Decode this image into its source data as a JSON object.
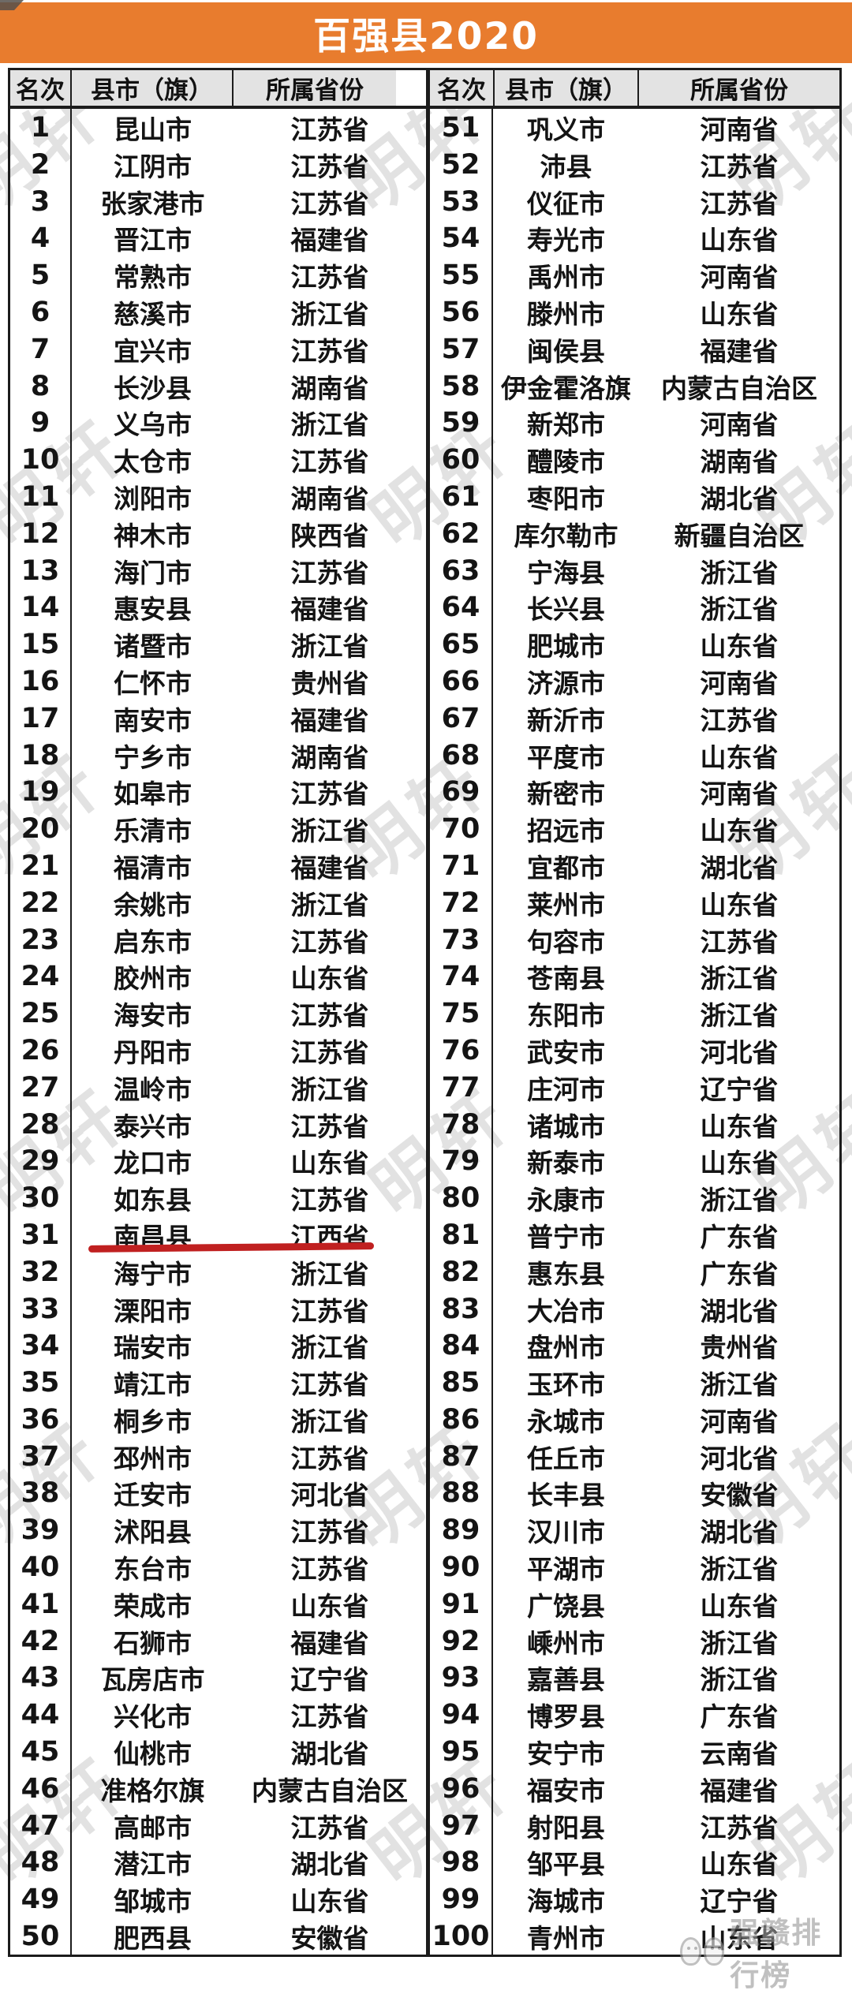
{
  "title": "百强县2020",
  "table": {
    "headers": [
      "名次",
      "县市（旗）",
      "所属省份"
    ],
    "highlight_rank": 31,
    "left_rows": [
      {
        "rank": "1",
        "city": "昆山市",
        "province": "江苏省"
      },
      {
        "rank": "2",
        "city": "江阴市",
        "province": "江苏省"
      },
      {
        "rank": "3",
        "city": "张家港市",
        "province": "江苏省"
      },
      {
        "rank": "4",
        "city": "晋江市",
        "province": "福建省"
      },
      {
        "rank": "5",
        "city": "常熟市",
        "province": "江苏省"
      },
      {
        "rank": "6",
        "city": "慈溪市",
        "province": "浙江省"
      },
      {
        "rank": "7",
        "city": "宜兴市",
        "province": "江苏省"
      },
      {
        "rank": "8",
        "city": "长沙县",
        "province": "湖南省"
      },
      {
        "rank": "9",
        "city": "义乌市",
        "province": "浙江省"
      },
      {
        "rank": "10",
        "city": "太仓市",
        "province": "江苏省"
      },
      {
        "rank": "11",
        "city": "浏阳市",
        "province": "湖南省"
      },
      {
        "rank": "12",
        "city": "神木市",
        "province": "陕西省"
      },
      {
        "rank": "13",
        "city": "海门市",
        "province": "江苏省"
      },
      {
        "rank": "14",
        "city": "惠安县",
        "province": "福建省"
      },
      {
        "rank": "15",
        "city": "诸暨市",
        "province": "浙江省"
      },
      {
        "rank": "16",
        "city": "仁怀市",
        "province": "贵州省"
      },
      {
        "rank": "17",
        "city": "南安市",
        "province": "福建省"
      },
      {
        "rank": "18",
        "city": "宁乡市",
        "province": "湖南省"
      },
      {
        "rank": "19",
        "city": "如皋市",
        "province": "江苏省"
      },
      {
        "rank": "20",
        "city": "乐清市",
        "province": "浙江省"
      },
      {
        "rank": "21",
        "city": "福清市",
        "province": "福建省"
      },
      {
        "rank": "22",
        "city": "余姚市",
        "province": "浙江省"
      },
      {
        "rank": "23",
        "city": "启东市",
        "province": "江苏省"
      },
      {
        "rank": "24",
        "city": "胶州市",
        "province": "山东省"
      },
      {
        "rank": "25",
        "city": "海安市",
        "province": "江苏省"
      },
      {
        "rank": "26",
        "city": "丹阳市",
        "province": "江苏省"
      },
      {
        "rank": "27",
        "city": "温岭市",
        "province": "浙江省"
      },
      {
        "rank": "28",
        "city": "泰兴市",
        "province": "江苏省"
      },
      {
        "rank": "29",
        "city": "龙口市",
        "province": "山东省"
      },
      {
        "rank": "30",
        "city": "如东县",
        "province": "江苏省"
      },
      {
        "rank": "31",
        "city": "南昌县",
        "province": "江西省"
      },
      {
        "rank": "32",
        "city": "海宁市",
        "province": "浙江省"
      },
      {
        "rank": "33",
        "city": "溧阳市",
        "province": "江苏省"
      },
      {
        "rank": "34",
        "city": "瑞安市",
        "province": "浙江省"
      },
      {
        "rank": "35",
        "city": "靖江市",
        "province": "江苏省"
      },
      {
        "rank": "36",
        "city": "桐乡市",
        "province": "浙江省"
      },
      {
        "rank": "37",
        "city": "邳州市",
        "province": "江苏省"
      },
      {
        "rank": "38",
        "city": "迁安市",
        "province": "河北省"
      },
      {
        "rank": "39",
        "city": "沭阳县",
        "province": "江苏省"
      },
      {
        "rank": "40",
        "city": "东台市",
        "province": "江苏省"
      },
      {
        "rank": "41",
        "city": "荣成市",
        "province": "山东省"
      },
      {
        "rank": "42",
        "city": "石狮市",
        "province": "福建省"
      },
      {
        "rank": "43",
        "city": "瓦房店市",
        "province": "辽宁省"
      },
      {
        "rank": "44",
        "city": "兴化市",
        "province": "江苏省"
      },
      {
        "rank": "45",
        "city": "仙桃市",
        "province": "湖北省"
      },
      {
        "rank": "46",
        "city": "准格尔旗",
        "province": "内蒙古自治区"
      },
      {
        "rank": "47",
        "city": "高邮市",
        "province": "江苏省"
      },
      {
        "rank": "48",
        "city": "潜江市",
        "province": "湖北省"
      },
      {
        "rank": "49",
        "city": "邹城市",
        "province": "山东省"
      },
      {
        "rank": "50",
        "city": "肥西县",
        "province": "安徽省"
      }
    ],
    "right_rows": [
      {
        "rank": "51",
        "city": "巩义市",
        "province": "河南省"
      },
      {
        "rank": "52",
        "city": "沛县",
        "province": "江苏省"
      },
      {
        "rank": "53",
        "city": "仪征市",
        "province": "江苏省"
      },
      {
        "rank": "54",
        "city": "寿光市",
        "province": "山东省"
      },
      {
        "rank": "55",
        "city": "禹州市",
        "province": "河南省"
      },
      {
        "rank": "56",
        "city": "滕州市",
        "province": "山东省"
      },
      {
        "rank": "57",
        "city": "闽侯县",
        "province": "福建省"
      },
      {
        "rank": "58",
        "city": "伊金霍洛旗",
        "province": "内蒙古自治区"
      },
      {
        "rank": "59",
        "city": "新郑市",
        "province": "河南省"
      },
      {
        "rank": "60",
        "city": "醴陵市",
        "province": "湖南省"
      },
      {
        "rank": "61",
        "city": "枣阳市",
        "province": "湖北省"
      },
      {
        "rank": "62",
        "city": "库尔勒市",
        "province": "新疆自治区"
      },
      {
        "rank": "63",
        "city": "宁海县",
        "province": "浙江省"
      },
      {
        "rank": "64",
        "city": "长兴县",
        "province": "浙江省"
      },
      {
        "rank": "65",
        "city": "肥城市",
        "province": "山东省"
      },
      {
        "rank": "66",
        "city": "济源市",
        "province": "河南省"
      },
      {
        "rank": "67",
        "city": "新沂市",
        "province": "江苏省"
      },
      {
        "rank": "68",
        "city": "平度市",
        "province": "山东省"
      },
      {
        "rank": "69",
        "city": "新密市",
        "province": "河南省"
      },
      {
        "rank": "70",
        "city": "招远市",
        "province": "山东省"
      },
      {
        "rank": "71",
        "city": "宜都市",
        "province": "湖北省"
      },
      {
        "rank": "72",
        "city": "莱州市",
        "province": "山东省"
      },
      {
        "rank": "73",
        "city": "句容市",
        "province": "江苏省"
      },
      {
        "rank": "74",
        "city": "苍南县",
        "province": "浙江省"
      },
      {
        "rank": "75",
        "city": "东阳市",
        "province": "浙江省"
      },
      {
        "rank": "76",
        "city": "武安市",
        "province": "河北省"
      },
      {
        "rank": "77",
        "city": "庄河市",
        "province": "辽宁省"
      },
      {
        "rank": "78",
        "city": "诸城市",
        "province": "山东省"
      },
      {
        "rank": "79",
        "city": "新泰市",
        "province": "山东省"
      },
      {
        "rank": "80",
        "city": "永康市",
        "province": "浙江省"
      },
      {
        "rank": "81",
        "city": "普宁市",
        "province": "广东省"
      },
      {
        "rank": "82",
        "city": "惠东县",
        "province": "广东省"
      },
      {
        "rank": "83",
        "city": "大冶市",
        "province": "湖北省"
      },
      {
        "rank": "84",
        "city": "盘州市",
        "province": "贵州省"
      },
      {
        "rank": "85",
        "city": "玉环市",
        "province": "浙江省"
      },
      {
        "rank": "86",
        "city": "永城市",
        "province": "河南省"
      },
      {
        "rank": "87",
        "city": "任丘市",
        "province": "河北省"
      },
      {
        "rank": "88",
        "city": "长丰县",
        "province": "安徽省"
      },
      {
        "rank": "89",
        "city": "汉川市",
        "province": "湖北省"
      },
      {
        "rank": "90",
        "city": "平湖市",
        "province": "浙江省"
      },
      {
        "rank": "91",
        "city": "广饶县",
        "province": "山东省"
      },
      {
        "rank": "92",
        "city": "嵊州市",
        "province": "浙江省"
      },
      {
        "rank": "93",
        "city": "嘉善县",
        "province": "浙江省"
      },
      {
        "rank": "94",
        "city": "博罗县",
        "province": "广东省"
      },
      {
        "rank": "95",
        "city": "安宁市",
        "province": "云南省"
      },
      {
        "rank": "96",
        "city": "福安市",
        "province": "福建省"
      },
      {
        "rank": "97",
        "city": "射阳县",
        "province": "江苏省"
      },
      {
        "rank": "98",
        "city": "邹平县",
        "province": "山东省"
      },
      {
        "rank": "99",
        "city": "海城市",
        "province": "辽宁省"
      },
      {
        "rank": "100",
        "city": "青州市",
        "province": "山东省"
      }
    ]
  },
  "watermark": {
    "text": "明轩"
  },
  "logo": {
    "text": "强赣排行榜"
  },
  "colors": {
    "banner": "#e87c2e",
    "header_bg": "#e3e3e3",
    "underline": "#c02020",
    "border": "#1c1c1c"
  }
}
